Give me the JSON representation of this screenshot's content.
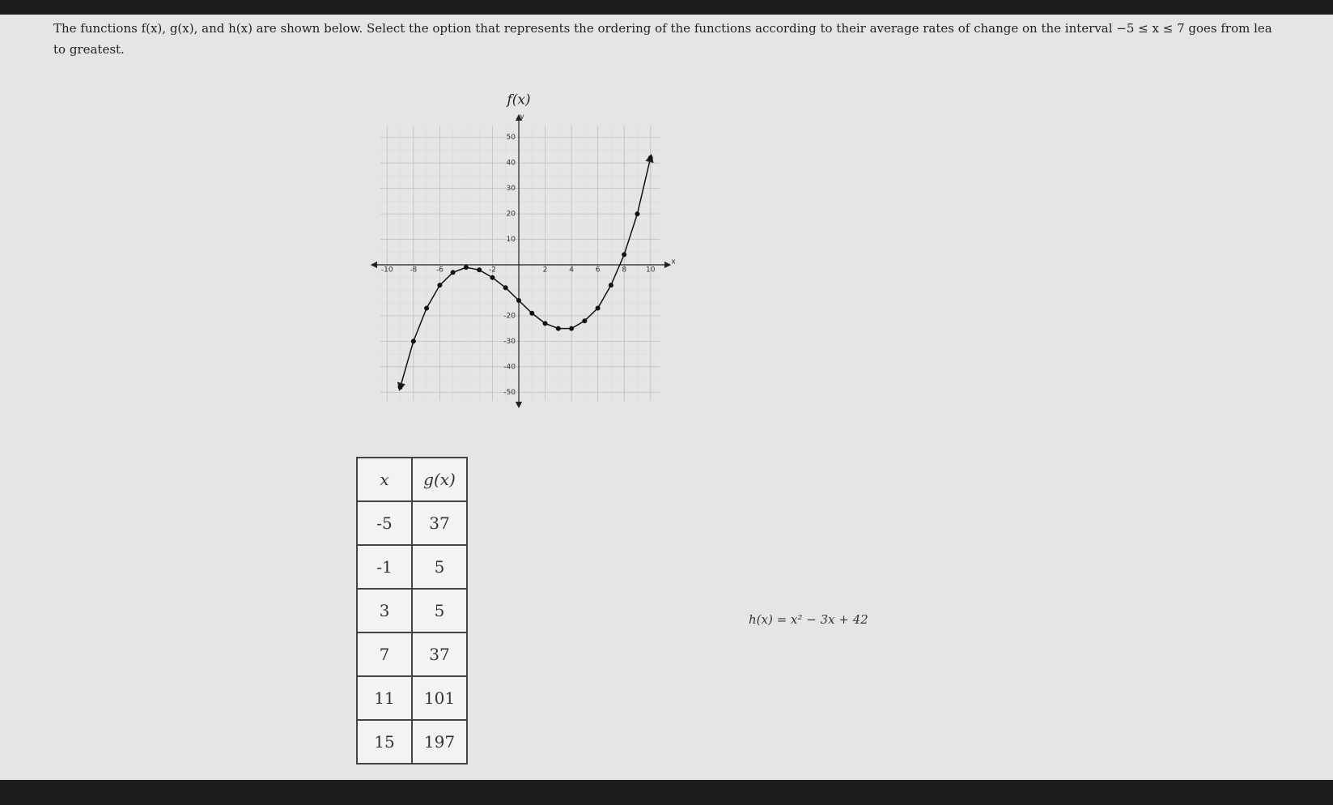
{
  "question": {
    "line1": "The functions f(x), g(x), and h(x) are shown below. Select the option that represents the ordering of the functions according to their average rates of change on the interval −5 ≤ x ≤ 7 goes from lea",
    "line2": "to greatest."
  },
  "chart_data": {
    "type": "line",
    "title": "f(x)",
    "x_label": "x",
    "y_label": "y",
    "x": [
      -9,
      -8,
      -7,
      -6,
      -5,
      -4,
      -3,
      -2,
      -1,
      0,
      1,
      2,
      3,
      4,
      5,
      6,
      7,
      8,
      9,
      10
    ],
    "values": [
      -48,
      -30,
      -17,
      -8,
      -3,
      -1,
      -2,
      -5,
      -9,
      -14,
      -19,
      -23,
      -25,
      -25,
      -22,
      -17,
      -8,
      4,
      20,
      42
    ],
    "color": "#111111",
    "xlim": [
      -11,
      11
    ],
    "ylim": [
      -55,
      55
    ],
    "xticks": [
      -10,
      -8,
      -6,
      -2,
      2,
      4,
      6,
      8,
      10
    ],
    "yticks": [
      50,
      40,
      30,
      20,
      10,
      -20,
      -30,
      -40,
      -50
    ],
    "grid": true
  },
  "table": {
    "header": [
      "x",
      "g(x)"
    ],
    "rows": [
      [
        -5,
        37
      ],
      [
        -1,
        5
      ],
      [
        3,
        5
      ],
      [
        7,
        37
      ],
      [
        11,
        101
      ],
      [
        15,
        197
      ]
    ]
  },
  "h_formula": "h(x) = x² − 3x + 42"
}
